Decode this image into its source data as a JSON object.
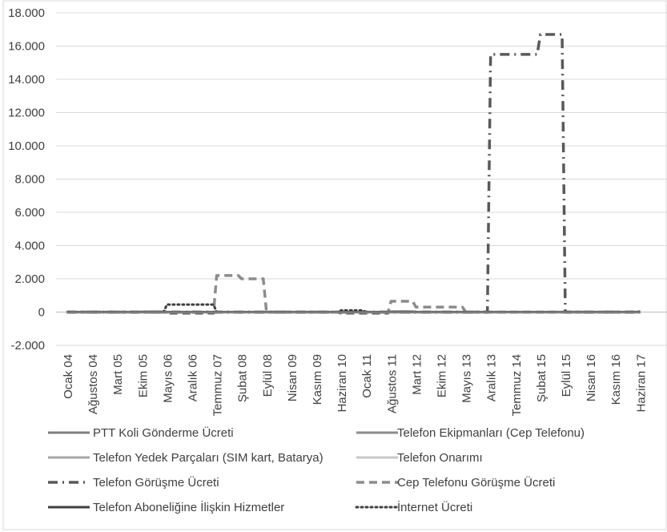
{
  "chart_data": {
    "type": "line",
    "title": "",
    "xlabel": "",
    "ylabel": "",
    "ylim": [
      -2000,
      18000
    ],
    "yticks": [
      -2000,
      0,
      2000,
      4000,
      6000,
      8000,
      10000,
      12000,
      14000,
      16000,
      18000
    ],
    "ytick_labels": [
      "-2.000",
      "0",
      "2.000",
      "4.000",
      "6.000",
      "8.000",
      "10.000",
      "12.000",
      "14.000",
      "16.000",
      "18.000"
    ],
    "grid": true,
    "legend_position": "bottom",
    "categories": [
      "Ocak 04",
      "Ağustos 04",
      "Mart 05",
      "Ekim 05",
      "Mayıs 06",
      "Aralık 06",
      "Temmuz 07",
      "Şubat 08",
      "Eylül 08",
      "Nisan 09",
      "Kasım 09",
      "Haziran 10",
      "Ocak 11",
      "Ağustos 11",
      "Mart 12",
      "Ekim 12",
      "Mayıs 13",
      "Aralık 13",
      "Temmuz 14",
      "Şubat 15",
      "Eylül 15",
      "Nisan 16",
      "Kasım 16",
      "Haziran 17"
    ],
    "series": [
      {
        "name": "PTT Koli Gönderme Ücreti",
        "color": "#7f7f7f",
        "style": "solid",
        "values": [
          0,
          0,
          0,
          0,
          0,
          0,
          0,
          0,
          0,
          0,
          0,
          0,
          0,
          0,
          0,
          0,
          0,
          0,
          0,
          0,
          0,
          0,
          0,
          50
        ]
      },
      {
        "name": "Telefon Ekipmanları (Cep Telefonu)",
        "color": "#8c8c8c",
        "style": "solid",
        "values": [
          0,
          0,
          0,
          20,
          0,
          0,
          0,
          0,
          0,
          0,
          0,
          0,
          0,
          30,
          0,
          0,
          0,
          0,
          0,
          0,
          0,
          0,
          0,
          60
        ]
      },
      {
        "name": "Telefon Yedek Parçaları (SIM kart, Batarya)",
        "color": "#a6a6a6",
        "style": "solid",
        "values": [
          0,
          0,
          0,
          0,
          0,
          0,
          0,
          0,
          0,
          0,
          0,
          0,
          0,
          0,
          0,
          0,
          0,
          0,
          0,
          0,
          0,
          0,
          0,
          40
        ]
      },
      {
        "name": "Telefon Onarımı",
        "color": "#c8c8c8",
        "style": "solid",
        "values": [
          0,
          0,
          0,
          0,
          0,
          0,
          0,
          0,
          0,
          0,
          0,
          0,
          0,
          0,
          0,
          0,
          0,
          0,
          0,
          0,
          0,
          0,
          0,
          30
        ]
      },
      {
        "name": "Telefon Görüşme Ücreti",
        "color": "#595959",
        "style": "dashdot",
        "values": [
          0,
          0,
          0,
          0,
          0,
          0,
          0,
          0,
          0,
          0,
          0,
          0,
          0,
          0,
          0,
          0,
          0,
          15500,
          15500,
          16700,
          0,
          0,
          0,
          0
        ]
      },
      {
        "name": "Cep Telefonu Görüşme Ücreti",
        "color": "#8c8c8c",
        "style": "dashed",
        "values": [
          0,
          0,
          0,
          0,
          -80,
          -80,
          2200,
          2000,
          0,
          0,
          0,
          -80,
          -80,
          650,
          300,
          300,
          0,
          0,
          0,
          0,
          0,
          0,
          0,
          0
        ]
      },
      {
        "name": "Telefon Aboneliğine İlişkin Hizmetler",
        "color": "#404040",
        "style": "solid",
        "values": [
          0,
          0,
          0,
          0,
          0,
          0,
          0,
          0,
          0,
          0,
          0,
          0,
          0,
          0,
          0,
          0,
          0,
          0,
          0,
          0,
          0,
          0,
          0,
          0
        ]
      },
      {
        "name": "İnternet Ücreti",
        "color": "#404040",
        "style": "dotted",
        "values": [
          0,
          0,
          0,
          0,
          450,
          450,
          0,
          0,
          0,
          0,
          0,
          100,
          0,
          0,
          0,
          0,
          0,
          0,
          0,
          0,
          0,
          0,
          0,
          0
        ]
      }
    ]
  }
}
